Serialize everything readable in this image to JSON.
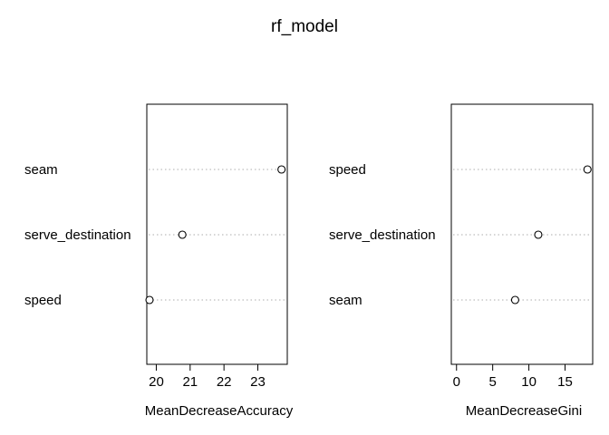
{
  "chart_data": {
    "type": "scatter",
    "title": "rf_model",
    "panels": [
      {
        "xlabel": "MeanDecreaseAccuracy",
        "categories": [
          "seam",
          "serve_destination",
          "speed"
        ],
        "values": [
          23.7,
          20.77,
          19.8
        ],
        "xlim": [
          19.72,
          23.87
        ],
        "ticks": [
          20,
          21,
          22,
          23
        ]
      },
      {
        "xlabel": "MeanDecreaseGini",
        "categories": [
          "speed",
          "serve_destination",
          "seam"
        ],
        "values": [
          18.1,
          11.3,
          8.1
        ],
        "xlim": [
          -0.72,
          18.82
        ],
        "ticks": [
          0,
          5,
          10,
          15
        ]
      }
    ]
  }
}
